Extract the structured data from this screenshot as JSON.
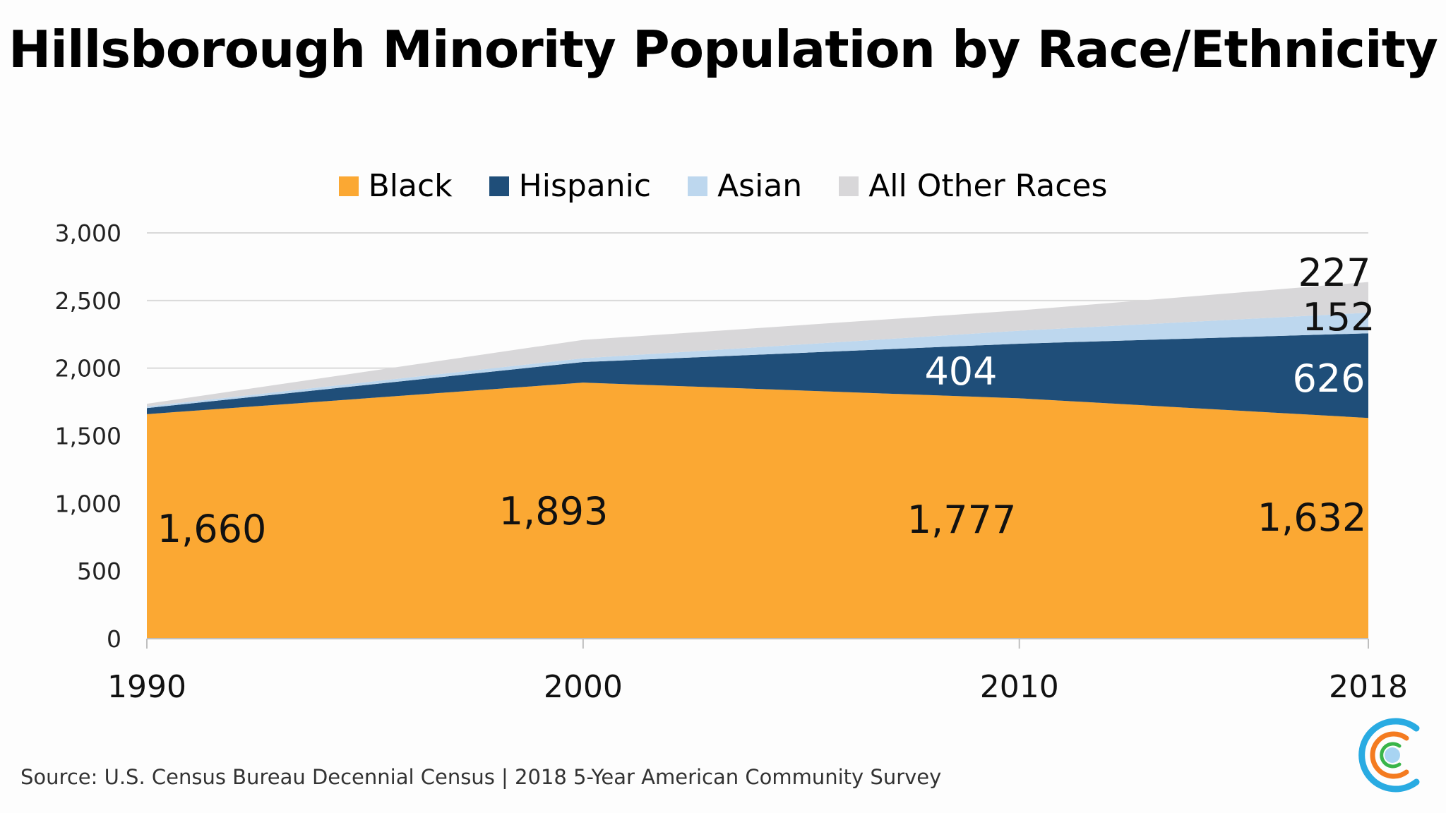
{
  "chart_data": {
    "type": "area",
    "stacked": true,
    "title": "Hillsborough Minority Population by Race/Ethnicity",
    "categories": [
      "1990",
      "2000",
      "2010",
      "2018"
    ],
    "series": [
      {
        "name": "Black",
        "color": "#FBA833",
        "values": [
          1660,
          1893,
          1777,
          1632
        ],
        "data_labels": [
          "1,660",
          "1,893",
          "1,777",
          "1,632"
        ]
      },
      {
        "name": "Hispanic",
        "color": "#1F4E79",
        "values": [
          45,
          152,
          404,
          626
        ],
        "data_labels": [
          null,
          null,
          "404",
          "626"
        ]
      },
      {
        "name": "Asian",
        "color": "#BDD7EE",
        "values": [
          12,
          28,
          96,
          152
        ],
        "data_labels": [
          null,
          null,
          null,
          "152"
        ]
      },
      {
        "name": "All Other Races",
        "color": "#D8D7D9",
        "values": [
          20,
          136,
          150,
          227
        ],
        "data_labels": [
          null,
          null,
          null,
          "227"
        ]
      }
    ],
    "ylim": [
      0,
      3000
    ],
    "yticks": [
      "0",
      "500",
      "1,000",
      "1,500",
      "2,000",
      "2,500",
      "3,000"
    ],
    "grid": true,
    "legend": "top-center",
    "xlabel": "",
    "ylabel": ""
  },
  "source": "Source: U.S. Census Bureau Decennial Census | 2018 5-Year American Community Survey",
  "logo": {
    "name": "concentric-c-logo",
    "colors": [
      "#29ABE2",
      "#F47B20",
      "#39B54A",
      "#A8D4F2"
    ]
  }
}
